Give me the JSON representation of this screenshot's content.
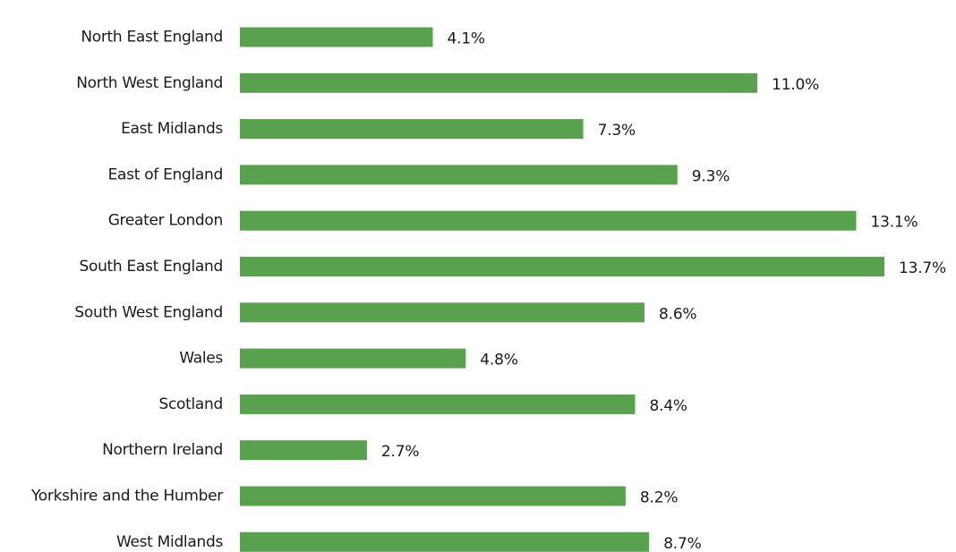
{
  "chart_data": {
    "type": "bar",
    "orientation": "horizontal",
    "title": "",
    "xlabel": "",
    "ylabel": "",
    "categories": [
      "North East England",
      "North West England",
      "East Midlands",
      "East of England",
      "Greater London",
      "South East England",
      "South West England",
      "Wales",
      "Scotland",
      "Northern Ireland",
      "Yorkshire and the Humber",
      "West Midlands"
    ],
    "values": [
      4.1,
      11.0,
      7.3,
      9.3,
      13.1,
      13.7,
      8.6,
      4.8,
      8.4,
      2.7,
      8.2,
      8.7
    ],
    "value_labels": [
      "4.1%",
      "11.0%",
      "7.3%",
      "9.3%",
      "13.1%",
      "13.7%",
      "8.6%",
      "4.8%",
      "8.4%",
      "2.7%",
      "8.2%",
      "8.7%"
    ],
    "unit": "%",
    "xlim": [
      0,
      13.7
    ],
    "grid": false,
    "legend": "none",
    "bar_color": "#5aa14f"
  }
}
